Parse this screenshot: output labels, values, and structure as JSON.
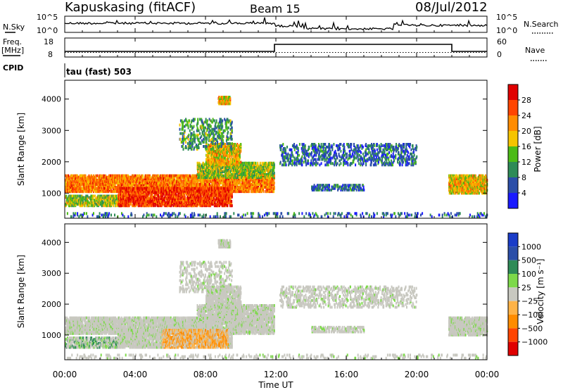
{
  "header": {
    "station": "Kapuskasing (fitACF)",
    "beam": "Beam 15",
    "date": "08/Jul/2012"
  },
  "noise_panel": {
    "left_label": "N.Sky",
    "right_label": "N.Search",
    "ytick_top": "10^5",
    "ytick_bottom": "10^0"
  },
  "freq_panel": {
    "left_label": "Freq.",
    "unit_label": "[MHz]",
    "right_label": "Nave",
    "left_tick_top": "18",
    "left_tick_bottom": "8",
    "right_tick_top": "60",
    "right_tick_bottom": "0"
  },
  "cpid": {
    "label": "CPID",
    "mode": "tau (fast) 503"
  },
  "colors": {
    "power_scale": [
      "#1a1aff",
      "#2b4ea8",
      "#2e8b57",
      "#4cbb17",
      "#f5c400",
      "#ff8c00",
      "#ff4500",
      "#e00000"
    ],
    "velocity_scale": [
      "#e00000",
      "#ff4500",
      "#ff8c00",
      "#ffb347",
      "#c8c8c0",
      "#7dd94a",
      "#2e8b57",
      "#2b4ea8",
      "#1a3cc8"
    ]
  },
  "chart_data": [
    {
      "type": "heatmap",
      "panel": "power",
      "ylabel": "Slant Range [km]",
      "yticks": [
        "1000",
        "2000",
        "3000",
        "4000"
      ],
      "ylim": [
        200,
        4600
      ],
      "colorbar_label": "Power [dB]",
      "colorbar_ticks": [
        "4",
        "8",
        "12",
        "16",
        "20",
        "24",
        "28"
      ],
      "colorbar_range": [
        0,
        32
      ],
      "xlim": [
        0,
        24
      ]
    },
    {
      "type": "heatmap",
      "panel": "velocity",
      "ylabel": "Slant Range [km]",
      "yticks": [
        "1000",
        "2000",
        "3000",
        "4000"
      ],
      "ylim": [
        200,
        4600
      ],
      "colorbar_label": "Velocity [m s⁻¹]",
      "colorbar_ticks": [
        "1000",
        "500",
        "100",
        "25",
        "−25",
        "−100",
        "−500",
        "−1000"
      ],
      "xlim": [
        0,
        24
      ]
    }
  ],
  "xaxis": {
    "ticks": [
      "00:00",
      "04:00",
      "08:00",
      "12:00",
      "16:00",
      "20:00",
      "00:00"
    ],
    "label": "Time UT"
  }
}
